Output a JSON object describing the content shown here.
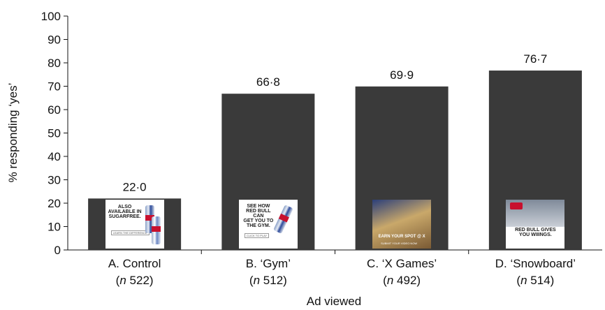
{
  "chart_data": {
    "type": "bar",
    "categories": [
      "A. Control",
      "B. ‘Gym’",
      "C. ‘X Games’",
      "D. ‘Snowboard’"
    ],
    "n_labels": [
      "522",
      "512",
      "492",
      "514"
    ],
    "n_prefix": "n",
    "values": [
      22.0,
      66.8,
      69.9,
      76.7
    ],
    "data_labels": [
      "22·0",
      "66·8",
      "69·9",
      "76·7"
    ],
    "xlabel": "Ad viewed",
    "ylabel": "% responding ‘yes’",
    "ylim": [
      0,
      100
    ],
    "yticks": [
      "0",
      "10",
      "20",
      "30",
      "40",
      "50",
      "60",
      "70",
      "80",
      "90",
      "100"
    ],
    "bar_color": "#3a3a3a",
    "grid": false
  },
  "ads": [
    {
      "name": "ad-control",
      "lines": "ALSO\nAVAILABLE IN\nSUGARFREE.",
      "small": "LEARN THE DIFFERENCE",
      "bg": "#ffffff"
    },
    {
      "name": "ad-gym",
      "lines": "SEE HOW\nRED BULL CAN\nGET YOU TO\nTHE GYM.",
      "small": "CLICK TO PLAY",
      "bg": "#ffffff"
    },
    {
      "name": "ad-xgames",
      "lines": "EARN YOUR SPOT @ X",
      "small": "SUBMIT YOUR VIDEO NOW",
      "bg": "#8a7048"
    },
    {
      "name": "ad-snowboard",
      "lines": "RED BULL GIVES\nYOU WIIINGS.",
      "small": "",
      "bg": "#1c2a4a"
    }
  ]
}
